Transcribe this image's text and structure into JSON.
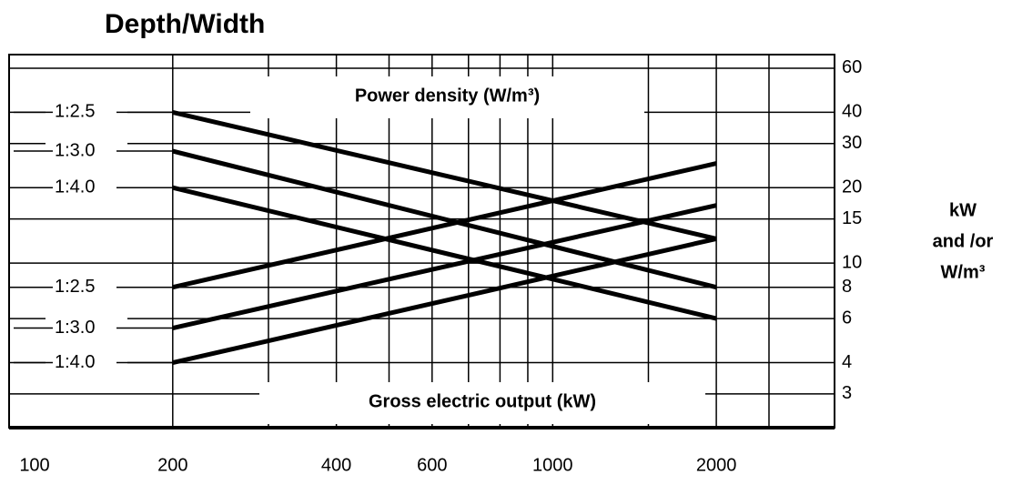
{
  "chart_data": {
    "type": "line",
    "title": "Depth/Width",
    "y_label": [
      "kW",
      "and /or",
      "W/m³"
    ],
    "log_x": true,
    "log_y": true,
    "grid": true,
    "xlim": [
      100,
      3300
    ],
    "xticks": [
      100,
      200,
      400,
      600,
      1000,
      2000
    ],
    "xgrid": [
      200,
      300,
      400,
      500,
      600,
      700,
      800,
      900,
      1000,
      1500,
      2000,
      2500
    ],
    "ylim": [
      2.2,
      68
    ],
    "yticks": [
      3,
      4,
      6,
      8,
      10,
      15,
      20,
      30,
      40,
      60
    ],
    "x": [
      200,
      2000
    ],
    "groups": [
      {
        "name": "Power density (W/m³)",
        "series": [
          {
            "name": "1:2.5",
            "color": "#000000",
            "values": [
              40,
              12.5
            ]
          },
          {
            "name": "1:3.0",
            "color": "#000000",
            "values": [
              28,
              8
            ]
          },
          {
            "name": "1:4.0",
            "color": "#000000",
            "values": [
              20,
              6
            ]
          }
        ]
      },
      {
        "name": "Gross electric output (kW)",
        "series": [
          {
            "name": "1:2.5",
            "color": "#000000",
            "values": [
              8,
              25
            ]
          },
          {
            "name": "1:3.0",
            "color": "#000000",
            "values": [
              5.5,
              17
            ]
          },
          {
            "name": "1:4.0",
            "color": "#000000",
            "values": [
              4,
              12.5
            ]
          }
        ]
      }
    ]
  }
}
